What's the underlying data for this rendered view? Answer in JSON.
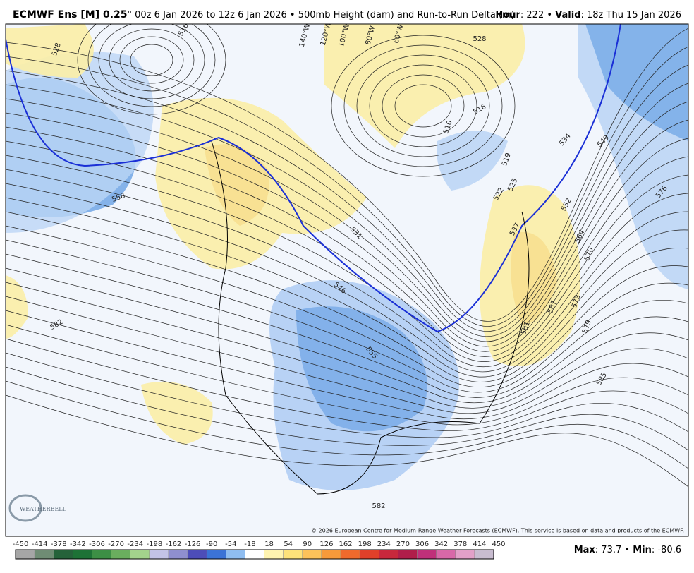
{
  "header": {
    "title_bold": "ECMWF Ens [M] 0.25",
    "title_degree": "°",
    "title_run": " 00z 6 Jan 2026 to 12z 6 Jan 2026 • 500mb Height (dam) and Run-to-Run Delta (m)",
    "hour_label": "Hour",
    "hour_value": ": 222 • ",
    "valid_label": "Valid",
    "valid_value": ": 18z Thu 15 Jan 2026"
  },
  "map": {
    "contour_labels": [
      "528",
      "516",
      "558",
      "582",
      "531",
      "546",
      "555",
      "582",
      "519",
      "522",
      "525",
      "510",
      "534",
      "549",
      "552",
      "564",
      "570",
      "576",
      "573",
      "567",
      "561",
      "579",
      "585",
      "516",
      "528",
      "537"
    ],
    "longitude_labels": [
      "140°W",
      "120°W",
      "100°W",
      "80°W",
      "60°W"
    ],
    "watermark": "WEATHERBELL",
    "copyright": "© 2026 European Centre for Medium-Range Weather Forecasts (ECMWF). This service is based on data and products of the ECMWF."
  },
  "colorbar": {
    "labels": [
      "-450",
      "-414",
      "-378",
      "-342",
      "-306",
      "-270",
      "-234",
      "-198",
      "-162",
      "-126",
      "-90",
      "-54",
      "-18",
      "18",
      "54",
      "90",
      "126",
      "162",
      "198",
      "234",
      "270",
      "306",
      "342",
      "378",
      "414",
      "450"
    ],
    "colors": [
      "#a6a6a6",
      "#6f8c74",
      "#25623a",
      "#1d7236",
      "#3c8f45",
      "#6aae5e",
      "#a3d38c",
      "#c3c3e6",
      "#8f8fcf",
      "#4d4db8",
      "#3b73d6",
      "#8fbdf0",
      "#ffffff",
      "#fff4b0",
      "#fde27a",
      "#fcc25a",
      "#f79a3a",
      "#ef6a2c",
      "#e0402a",
      "#c8283c",
      "#b01e4a",
      "#c0307a",
      "#d868a8",
      "#e2a0c8",
      "#c8bcd0"
    ]
  },
  "footer": {
    "max_label": "Max",
    "max_value": ": 73.7 • ",
    "min_label": "Min",
    "min_value": ": -80.6"
  }
}
